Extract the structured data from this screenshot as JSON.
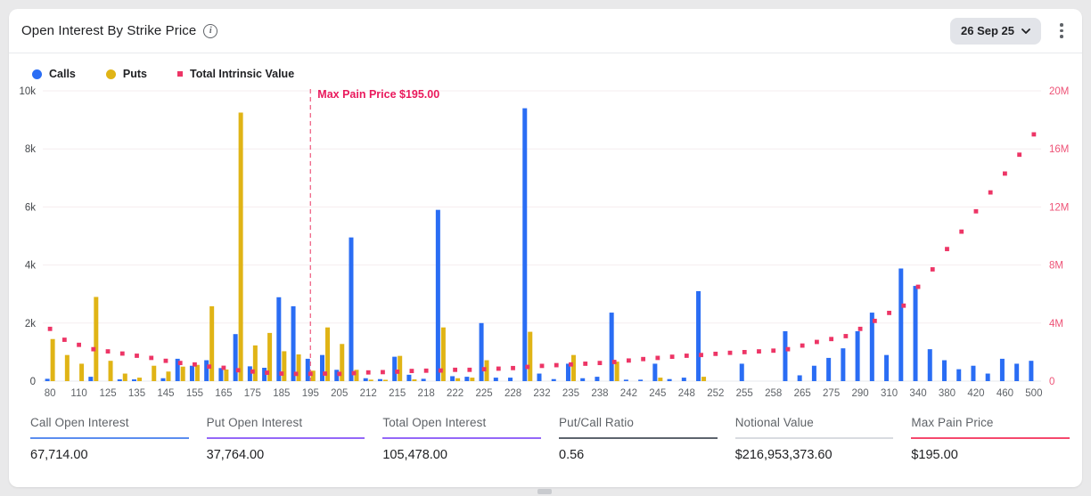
{
  "header": {
    "title": "Open Interest By Strike Price",
    "date_selector": "26 Sep 25"
  },
  "legend": [
    {
      "label": "Calls",
      "color": "#2a6df4",
      "shape": "circle"
    },
    {
      "label": "Puts",
      "color": "#e0b416",
      "shape": "circle"
    },
    {
      "label": "Total Intrinsic Value",
      "color": "#ed3566",
      "shape": "square"
    }
  ],
  "chart_data": {
    "type": "bar",
    "title": "Open Interest By Strike Price",
    "series_names": [
      "Calls",
      "Puts",
      "Total Intrinsic Value"
    ],
    "colors": {
      "calls": "#2a6df4",
      "puts": "#e0b416",
      "tiv": "#ed3566",
      "grid": "#f6edef",
      "baseline": "#e7e9ec",
      "axis_text": "#44474b",
      "right_axis_text": "#ee5377",
      "maxpain_line": "#ef6486",
      "maxpain_text": "#e9195c",
      "tick_text": "#5f6368"
    },
    "left_axis": {
      "ticks": [
        "0",
        "2k",
        "4k",
        "6k",
        "8k",
        "10k"
      ],
      "max": 10000
    },
    "right_axis": {
      "ticks": [
        "0",
        "4M",
        "8M",
        "12M",
        "16M",
        "20M"
      ],
      "max_m": 20
    },
    "max_pain": {
      "label": "Max Pain Price $195.00",
      "index": 18
    },
    "legend_position": "top-left",
    "grid": "horizontal",
    "bars": [
      {
        "label": "80",
        "calls": 80,
        "puts": 1450,
        "tiv_m": 3.6
      },
      {
        "label": "",
        "calls": 0,
        "puts": 900,
        "tiv_m": 2.85
      },
      {
        "label": "110",
        "calls": 0,
        "puts": 600,
        "tiv_m": 2.5
      },
      {
        "label": "",
        "calls": 150,
        "puts": 2900,
        "tiv_m": 2.2
      },
      {
        "label": "125",
        "calls": 0,
        "puts": 700,
        "tiv_m": 2.05
      },
      {
        "label": "",
        "calls": 60,
        "puts": 260,
        "tiv_m": 1.9
      },
      {
        "label": "135",
        "calls": 60,
        "puts": 120,
        "tiv_m": 1.75
      },
      {
        "label": "",
        "calls": 0,
        "puts": 530,
        "tiv_m": 1.6
      },
      {
        "label": "145",
        "calls": 100,
        "puts": 330,
        "tiv_m": 1.4
      },
      {
        "label": "",
        "calls": 770,
        "puts": 500,
        "tiv_m": 1.25
      },
      {
        "label": "155",
        "calls": 530,
        "puts": 560,
        "tiv_m": 1.15
      },
      {
        "label": "",
        "calls": 720,
        "puts": 2580,
        "tiv_m": 1.0
      },
      {
        "label": "165",
        "calls": 450,
        "puts": 400,
        "tiv_m": 0.92
      },
      {
        "label": "",
        "calls": 1620,
        "puts": 9250,
        "tiv_m": 0.75
      },
      {
        "label": "175",
        "calls": 510,
        "puts": 1230,
        "tiv_m": 0.66
      },
      {
        "label": "",
        "calls": 460,
        "puts": 1660,
        "tiv_m": 0.58
      },
      {
        "label": "185",
        "calls": 2890,
        "puts": 1030,
        "tiv_m": 0.52
      },
      {
        "label": "",
        "calls": 2580,
        "puts": 920,
        "tiv_m": 0.5
      },
      {
        "label": "195",
        "calls": 770,
        "puts": 360,
        "tiv_m": 0.5
      },
      {
        "label": "",
        "calls": 900,
        "puts": 1850,
        "tiv_m": 0.52
      },
      {
        "label": "205",
        "calls": 390,
        "puts": 1280,
        "tiv_m": 0.5
      },
      {
        "label": "",
        "calls": 4950,
        "puts": 390,
        "tiv_m": 0.55
      },
      {
        "label": "212",
        "calls": 100,
        "puts": 50,
        "tiv_m": 0.6
      },
      {
        "label": "",
        "calls": 70,
        "puts": 30,
        "tiv_m": 0.62
      },
      {
        "label": "215",
        "calls": 840,
        "puts": 870,
        "tiv_m": 0.65
      },
      {
        "label": "",
        "calls": 220,
        "puts": 60,
        "tiv_m": 0.7
      },
      {
        "label": "218",
        "calls": 80,
        "puts": 0,
        "tiv_m": 0.72
      },
      {
        "label": "",
        "calls": 5900,
        "puts": 1850,
        "tiv_m": 0.73
      },
      {
        "label": "222",
        "calls": 170,
        "puts": 100,
        "tiv_m": 0.78
      },
      {
        "label": "",
        "calls": 150,
        "puts": 120,
        "tiv_m": 0.78
      },
      {
        "label": "225",
        "calls": 2000,
        "puts": 720,
        "tiv_m": 0.82
      },
      {
        "label": "",
        "calls": 120,
        "puts": 0,
        "tiv_m": 0.86
      },
      {
        "label": "228",
        "calls": 120,
        "puts": 0,
        "tiv_m": 0.9
      },
      {
        "label": "",
        "calls": 9400,
        "puts": 1700,
        "tiv_m": 0.98
      },
      {
        "label": "232",
        "calls": 260,
        "puts": 0,
        "tiv_m": 1.05
      },
      {
        "label": "",
        "calls": 70,
        "puts": 0,
        "tiv_m": 1.1
      },
      {
        "label": "235",
        "calls": 600,
        "puts": 900,
        "tiv_m": 1.15
      },
      {
        "label": "",
        "calls": 100,
        "puts": 0,
        "tiv_m": 1.2
      },
      {
        "label": "238",
        "calls": 150,
        "puts": 0,
        "tiv_m": 1.25
      },
      {
        "label": "",
        "calls": 2360,
        "puts": 670,
        "tiv_m": 1.32
      },
      {
        "label": "242",
        "calls": 50,
        "puts": 0,
        "tiv_m": 1.42
      },
      {
        "label": "",
        "calls": 50,
        "puts": 0,
        "tiv_m": 1.52
      },
      {
        "label": "245",
        "calls": 600,
        "puts": 120,
        "tiv_m": 1.6
      },
      {
        "label": "",
        "calls": 70,
        "puts": 0,
        "tiv_m": 1.68
      },
      {
        "label": "248",
        "calls": 120,
        "puts": 0,
        "tiv_m": 1.75
      },
      {
        "label": "",
        "calls": 3100,
        "puts": 150,
        "tiv_m": 1.8
      },
      {
        "label": "252",
        "calls": 0,
        "puts": 0,
        "tiv_m": 1.88
      },
      {
        "label": "",
        "calls": 0,
        "puts": 0,
        "tiv_m": 1.95
      },
      {
        "label": "255",
        "calls": 600,
        "puts": 0,
        "tiv_m": 2.0
      },
      {
        "label": "",
        "calls": 0,
        "puts": 0,
        "tiv_m": 2.05
      },
      {
        "label": "258",
        "calls": 0,
        "puts": 0,
        "tiv_m": 2.1
      },
      {
        "label": "",
        "calls": 1720,
        "puts": 0,
        "tiv_m": 2.2
      },
      {
        "label": "265",
        "calls": 200,
        "puts": 0,
        "tiv_m": 2.45
      },
      {
        "label": "",
        "calls": 530,
        "puts": 0,
        "tiv_m": 2.7
      },
      {
        "label": "275",
        "calls": 800,
        "puts": 0,
        "tiv_m": 2.9
      },
      {
        "label": "",
        "calls": 1130,
        "puts": 0,
        "tiv_m": 3.1
      },
      {
        "label": "290",
        "calls": 1720,
        "puts": 0,
        "tiv_m": 3.6
      },
      {
        "label": "",
        "calls": 2360,
        "puts": 0,
        "tiv_m": 4.15
      },
      {
        "label": "310",
        "calls": 900,
        "puts": 0,
        "tiv_m": 4.7
      },
      {
        "label": "",
        "calls": 3880,
        "puts": 0,
        "tiv_m": 5.2
      },
      {
        "label": "340",
        "calls": 3280,
        "puts": 0,
        "tiv_m": 6.5
      },
      {
        "label": "",
        "calls": 1100,
        "puts": 0,
        "tiv_m": 7.7
      },
      {
        "label": "380",
        "calls": 720,
        "puts": 0,
        "tiv_m": 9.1
      },
      {
        "label": "",
        "calls": 410,
        "puts": 0,
        "tiv_m": 10.3
      },
      {
        "label": "420",
        "calls": 530,
        "puts": 0,
        "tiv_m": 11.7
      },
      {
        "label": "",
        "calls": 260,
        "puts": 0,
        "tiv_m": 13.0
      },
      {
        "label": "460",
        "calls": 770,
        "puts": 0,
        "tiv_m": 14.3
      },
      {
        "label": "",
        "calls": 600,
        "puts": 0,
        "tiv_m": 15.6
      },
      {
        "label": "500",
        "calls": 700,
        "puts": 0,
        "tiv_m": 17.0
      }
    ]
  },
  "stats": [
    {
      "label": "Call Open Interest",
      "value": "67,714.00",
      "underline": "#5b8def"
    },
    {
      "label": "Put Open Interest",
      "value": "37,764.00",
      "underline": "#9468f8"
    },
    {
      "label": "Total Open Interest",
      "value": "105,478.00",
      "underline": "#9468f8"
    },
    {
      "label": "Put/Call Ratio",
      "value": "0.56",
      "underline": "#5d646e"
    },
    {
      "label": "Notional Value",
      "value": "$216,953,373.60",
      "underline": "#d8dbe0"
    },
    {
      "label": "Max Pain Price",
      "value": "$195.00",
      "underline": "#f5486d"
    }
  ]
}
